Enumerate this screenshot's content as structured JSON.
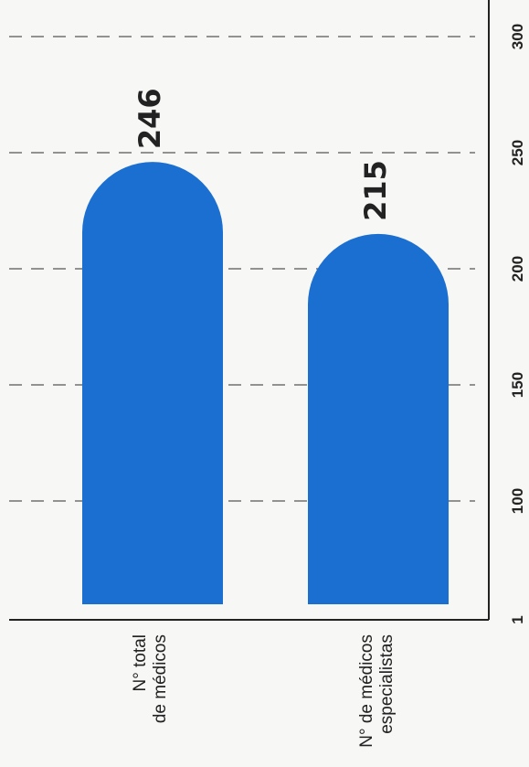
{
  "chart_data": {
    "type": "bar",
    "orientation": "rotated",
    "categories": [
      [
        "N° total",
        "de médicos"
      ],
      [
        "N° de médicos",
        "especialistas"
      ]
    ],
    "values": [
      246,
      215
    ],
    "data_labels": [
      "246",
      "215"
    ],
    "value_ticks": [
      1,
      100,
      150,
      200,
      250,
      300
    ],
    "value_tick_labels": [
      "1",
      "100",
      "150",
      "200",
      "250",
      "300"
    ],
    "grid": true,
    "bar_color": "#1a6fd1",
    "text_color": "#222222",
    "background_color": "#f7f7f5"
  }
}
